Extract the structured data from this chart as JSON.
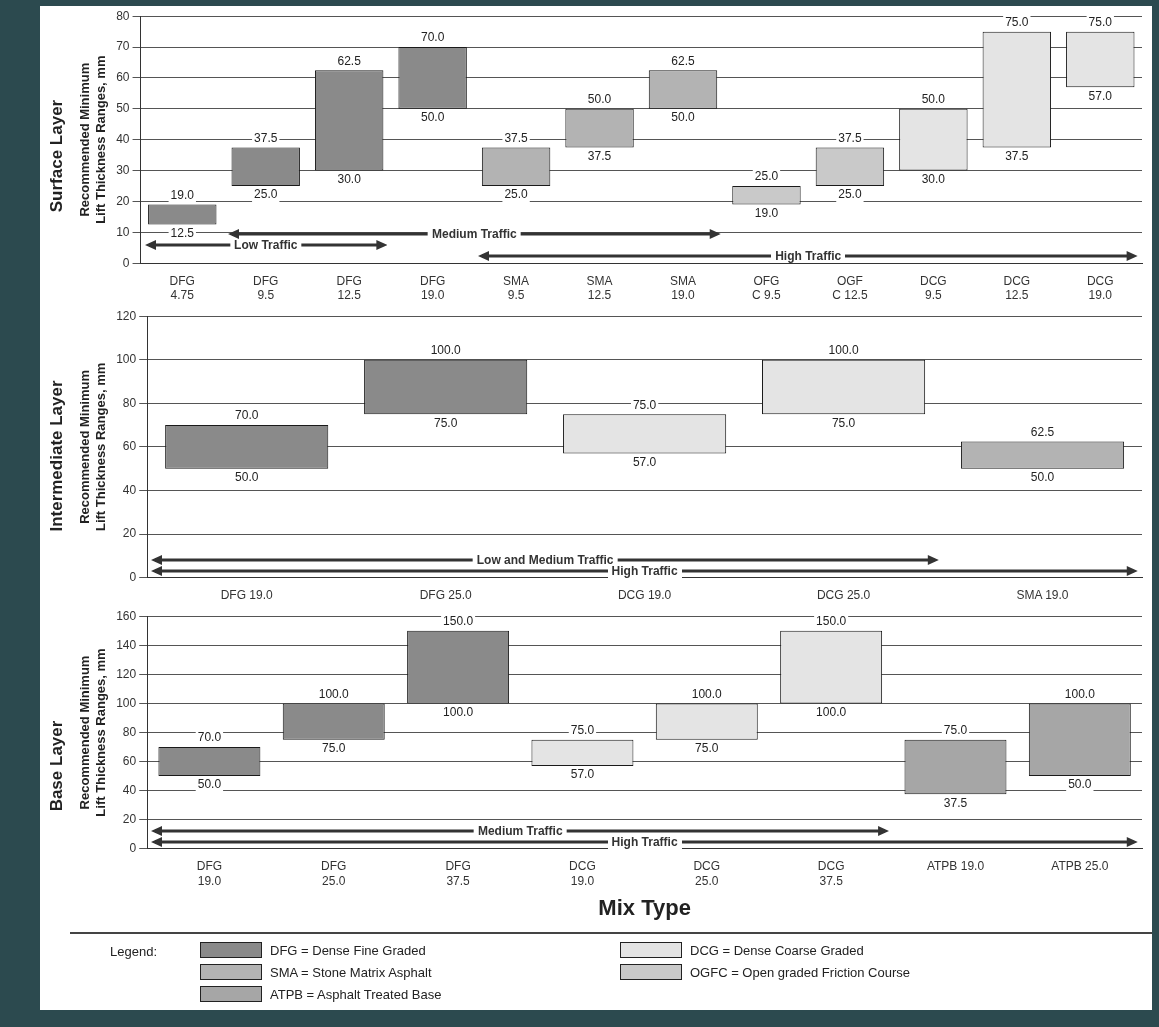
{
  "chart_data": [
    {
      "type": "bar",
      "title": "Surface Layer",
      "ylabel": "Recommended Minimum\nLift Thickness Ranges, mm",
      "categories": [
        "DFG\n4.75",
        "DFG\n9.5",
        "DFG\n12.5",
        "DFG\n19.0",
        "SMA\n9.5",
        "SMA\n12.5",
        "SMA\n19.0",
        "OFG\nC 9.5",
        "OGF\nC 12.5",
        "DCG\n9.5",
        "DCG\n12.5",
        "DCG\n19.0"
      ],
      "series": [
        {
          "color": "#8a8a8a",
          "values": [
            6.5,
            12.5,
            32.5,
            20,
            null,
            null,
            null,
            null,
            null,
            null,
            null,
            null
          ],
          "base": [
            12.5,
            25,
            30,
            50,
            null,
            null,
            null,
            null,
            null,
            null,
            null,
            null
          ]
        },
        {
          "color": "#b3b3b3",
          "values": [
            null,
            null,
            null,
            null,
            12.5,
            12.5,
            12.5,
            null,
            null,
            null,
            null,
            null
          ],
          "base": [
            null,
            null,
            null,
            null,
            25,
            37.5,
            50,
            null,
            null,
            null,
            null,
            null
          ]
        },
        {
          "color": "#c9c9c9",
          "values": [
            null,
            null,
            null,
            null,
            null,
            null,
            null,
            6,
            12.5,
            null,
            null,
            null
          ],
          "base": [
            null,
            null,
            null,
            null,
            null,
            null,
            null,
            19,
            25,
            null,
            null,
            null
          ]
        },
        {
          "color": "#e4e4e4",
          "values": [
            null,
            null,
            null,
            null,
            null,
            null,
            null,
            null,
            null,
            20,
            37.5,
            18
          ],
          "base": [
            null,
            null,
            null,
            null,
            null,
            null,
            null,
            null,
            null,
            30,
            37.5,
            57
          ]
        }
      ],
      "ylim": [
        0,
        80
      ],
      "yticks": [
        0,
        10,
        20,
        30,
        40,
        50,
        60,
        70,
        80
      ],
      "grid": "y",
      "annotations": [
        "Low Traffic",
        "Medium Traffic",
        "High Traffic",
        {
          "text": "19.0",
          "x": "DFG\n4.75",
          "y": 19
        },
        {
          "text": "12.5",
          "x": "DFG\n4.75",
          "y": 12.5
        },
        {
          "text": "37.5",
          "x": "DFG\n9.5",
          "y": 37.5
        },
        {
          "text": "25.0",
          "x": "DFG\n9.5",
          "y": 25
        },
        {
          "text": "62.5",
          "x": "DFG\n12.5",
          "y": 62.5
        },
        {
          "text": "30.0",
          "x": "DFG\n12.5",
          "y": 30
        },
        {
          "text": "70.0",
          "x": "DFG\n19.0",
          "y": 70
        },
        {
          "text": "50.0",
          "x": "DFG\n19.0",
          "y": 50
        },
        {
          "text": "37.5",
          "x": "SMA\n9.5",
          "y": 37.5
        },
        {
          "text": "25.0",
          "x": "SMA\n9.5",
          "y": 25
        },
        {
          "text": "50.0",
          "x": "SMA\n12.5",
          "y": 50
        },
        {
          "text": "37.5",
          "x": "SMA\n12.5",
          "y": 37.5
        },
        {
          "text": "62.5",
          "x": "SMA\n19.0",
          "y": 62.5
        },
        {
          "text": "50.0",
          "x": "SMA\n19.0",
          "y": 50
        },
        {
          "text": "25.0",
          "x": "OFG\nC 9.5",
          "y": 25
        },
        {
          "text": "19.0",
          "x": "OFG\nC 9.5",
          "y": 19
        },
        {
          "text": "37.5",
          "x": "OGF\nC 12.5",
          "y": 37.5
        },
        {
          "text": "25.0",
          "x": "OGF\nC 12.5",
          "y": 25
        },
        {
          "text": "50.0",
          "x": "DCG\n9.5",
          "y": 50
        },
        {
          "text": "30.0",
          "x": "DCG\n9.5",
          "y": 30
        },
        {
          "text": "75.0",
          "x": "DCG\n12.5",
          "y": 75
        },
        {
          "text": "37.5",
          "x": "DCG\n12.5",
          "y": 37.5
        },
        {
          "text": "75.0",
          "x": "DCG\n19.0",
          "y": 75
        },
        {
          "text": "57.0",
          "x": "DCG\n19.0",
          "y": 57
        }
      ]
    },
    {
      "type": "bar",
      "title": "Intermediate Layer",
      "ylabel": "Recommended Minimum\nLift Thickness Ranges, mm",
      "categories": [
        "DFG 19.0",
        "DFG 25.0",
        "DCG 19.0",
        "DCG 25.0",
        "SMA 19.0"
      ],
      "series": [
        {
          "color": "#8a8a8a",
          "values": [
            20,
            25,
            null,
            null,
            null
          ],
          "base": [
            50,
            75,
            null,
            null,
            null
          ]
        },
        {
          "color": "#e4e4e4",
          "values": [
            null,
            null,
            18,
            25,
            null
          ],
          "base": [
            null,
            null,
            57,
            75,
            null
          ]
        },
        {
          "color": "#b3b3b3",
          "values": [
            null,
            null,
            null,
            null,
            12.5
          ],
          "base": [
            null,
            null,
            null,
            null,
            50
          ]
        }
      ],
      "ylim": [
        0,
        120
      ],
      "yticks": [
        0,
        20,
        40,
        60,
        80,
        100,
        120
      ],
      "grid": "y",
      "annotations": [
        "Low and Medium Traffic",
        "High Traffic",
        {
          "text": "70.0",
          "x": "DFG 19.0",
          "y": 70
        },
        {
          "text": "50.0",
          "x": "DFG 19.0",
          "y": 50
        },
        {
          "text": "100.0",
          "x": "DFG 25.0",
          "y": 100
        },
        {
          "text": "75.0",
          "x": "DFG 25.0",
          "y": 75
        },
        {
          "text": "75.0",
          "x": "DCG 19.0",
          "y": 75
        },
        {
          "text": "57.0",
          "x": "DCG 19.0",
          "y": 57
        },
        {
          "text": "100.0",
          "x": "DCG 25.0",
          "y": 100
        },
        {
          "text": "75.0",
          "x": "DCG 25.0",
          "y": 75
        },
        {
          "text": "62.5",
          "x": "SMA 19.0",
          "y": 62.5
        },
        {
          "text": "50.0",
          "x": "SMA 19.0",
          "y": 50
        }
      ]
    },
    {
      "type": "bar",
      "title": "Base Layer",
      "ylabel": "Recommended Minimum\nLift Thickness Ranges, mm",
      "xlabel": "Mix Type",
      "legend_title": "Legend:",
      "legend": "bottom",
      "categories": [
        "DFG\n19.0",
        "DFG\n25.0",
        "DFG\n37.5",
        "DCG\n19.0",
        "DCG\n25.0",
        "DCG\n37.5",
        "ATPB 19.0",
        "ATPB 25.0"
      ],
      "series": [
        {
          "name": "DFG = Dense Fine Graded",
          "color": "#8a8a8a",
          "values": [
            20,
            25,
            50,
            null,
            null,
            null,
            null,
            null
          ],
          "base": [
            50,
            75,
            100,
            null,
            null,
            null,
            null,
            null
          ]
        },
        {
          "name": "DCG = Dense Coarse Graded",
          "color": "#e4e4e4",
          "values": [
            null,
            null,
            null,
            18,
            25,
            50,
            null,
            null
          ],
          "base": [
            null,
            null,
            null,
            57,
            75,
            100,
            null,
            null
          ]
        },
        {
          "name": "SMA = Stone Matrix Asphalt",
          "color": "#b3b3b3",
          "values": [
            null,
            null,
            null,
            null,
            null,
            null,
            null,
            null
          ],
          "base": [
            null,
            null,
            null,
            null,
            null,
            null,
            null,
            null
          ]
        },
        {
          "name": "OGFC = Open graded Friction Course",
          "color": "#c9c9c9",
          "values": [
            null,
            null,
            null,
            null,
            null,
            null,
            null,
            null
          ],
          "base": [
            null,
            null,
            null,
            null,
            null,
            null,
            null,
            null
          ]
        },
        {
          "name": "ATPB = Asphalt Treated Base",
          "color": "#a6a6a6",
          "values": [
            null,
            null,
            null,
            null,
            null,
            null,
            37.5,
            50
          ],
          "base": [
            null,
            null,
            null,
            null,
            null,
            null,
            37.5,
            50
          ]
        }
      ],
      "ylim": [
        0,
        160
      ],
      "yticks": [
        0,
        20,
        40,
        60,
        80,
        100,
        120,
        140,
        160
      ],
      "grid": "y",
      "annotations": [
        "Medium Traffic",
        "High Traffic",
        {
          "text": "70.0",
          "x": "DFG\n19.0",
          "y": 70
        },
        {
          "text": "50.0",
          "x": "DFG\n19.0",
          "y": 50
        },
        {
          "text": "100.0",
          "x": "DFG\n25.0",
          "y": 100
        },
        {
          "text": "75.0",
          "x": "DFG\n25.0",
          "y": 75
        },
        {
          "text": "150.0",
          "x": "DFG\n37.5",
          "y": 150
        },
        {
          "text": "100.0",
          "x": "DFG\n37.5",
          "y": 100
        },
        {
          "text": "75.0",
          "x": "DCG\n19.0",
          "y": 75
        },
        {
          "text": "57.0",
          "x": "DCG\n19.0",
          "y": 57
        },
        {
          "text": "100.0",
          "x": "DCG\n25.0",
          "y": 100
        },
        {
          "text": "75.0",
          "x": "DCG\n25.0",
          "y": 75
        },
        {
          "text": "150.0",
          "x": "DCG\n37.5",
          "y": 150
        },
        {
          "text": "100.0",
          "x": "DCG\n37.5",
          "y": 100
        },
        {
          "text": "75.0",
          "x": "ATPB 19.0",
          "y": 75
        },
        {
          "text": "37.5",
          "x": "ATPB 19.0",
          "y": 37.5
        },
        {
          "text": "100.0",
          "x": "ATPB 25.0",
          "y": 100
        },
        {
          "text": "50.0",
          "x": "ATPB 25.0",
          "y": 50
        }
      ]
    }
  ]
}
